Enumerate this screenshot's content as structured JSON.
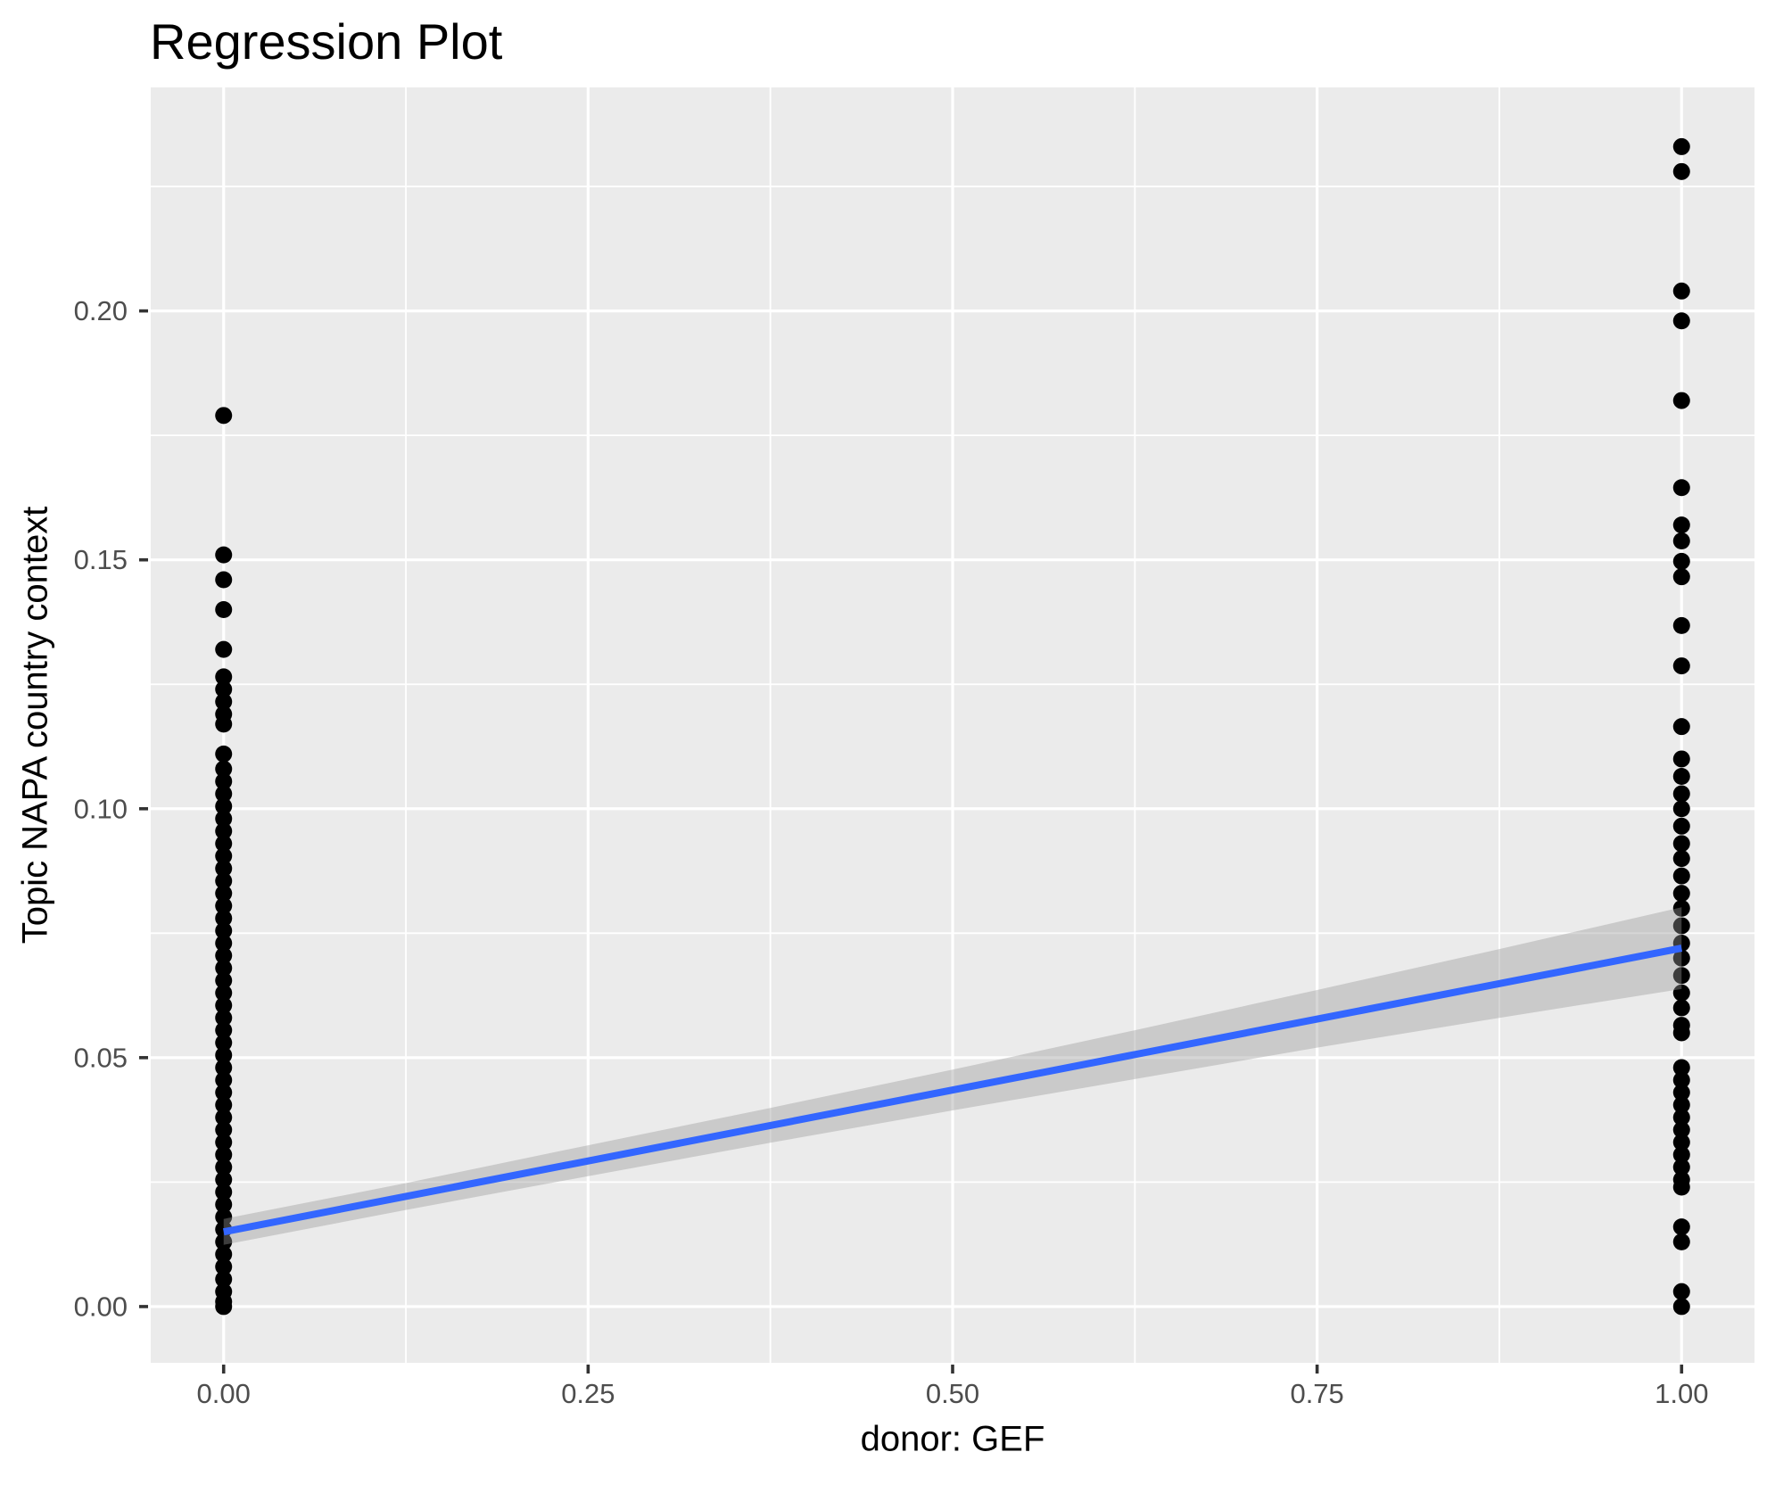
{
  "colors": {
    "panel_bg": "#EBEBEB",
    "grid": "#FFFFFF",
    "point": "#000000",
    "line": "#3366FF",
    "ribbon": "rgba(153,153,153,0.4)",
    "tick_label": "#4D4D4D",
    "tick_mark": "#333333",
    "title": "#000000"
  },
  "chart_data": {
    "type": "scatter",
    "title": "Regression Plot",
    "xlabel": "donor: GEF",
    "ylabel": "Topic NAPA country context",
    "xlim": [
      -0.05,
      1.05
    ],
    "ylim": [
      -0.0113,
      0.2449
    ],
    "grid": "major+minor, white on grey panel",
    "legend": "none",
    "x_ticks": [
      {
        "value": 0.0,
        "label": "0.00"
      },
      {
        "value": 0.25,
        "label": "0.25"
      },
      {
        "value": 0.5,
        "label": "0.50"
      },
      {
        "value": 0.75,
        "label": "0.75"
      },
      {
        "value": 1.0,
        "label": "1.00"
      }
    ],
    "y_ticks": [
      {
        "value": 0.0,
        "label": "0.00"
      },
      {
        "value": 0.05,
        "label": "0.05"
      },
      {
        "value": 0.1,
        "label": "0.10"
      },
      {
        "value": 0.15,
        "label": "0.15"
      },
      {
        "value": 0.2,
        "label": "0.20"
      }
    ],
    "x_minor": [
      0.125,
      0.375,
      0.625,
      0.875
    ],
    "y_minor": [
      0.025,
      0.075,
      0.125,
      0.175,
      0.225
    ],
    "series": [
      {
        "name": "donor GEF = 0",
        "x": 0,
        "y": [
          0.179,
          0.151,
          0.146,
          0.14,
          0.132,
          0.1265,
          0.124,
          0.1215,
          0.119,
          0.117,
          0.111,
          0.108,
          0.1055,
          0.103,
          0.1005,
          0.098,
          0.0955,
          0.093,
          0.0905,
          0.088,
          0.0855,
          0.083,
          0.0805,
          0.078,
          0.0755,
          0.073,
          0.0705,
          0.068,
          0.0655,
          0.063,
          0.0605,
          0.058,
          0.0555,
          0.053,
          0.0505,
          0.048,
          0.0455,
          0.043,
          0.0405,
          0.038,
          0.0355,
          0.033,
          0.0305,
          0.028,
          0.0255,
          0.023,
          0.0205,
          0.018,
          0.0155,
          0.013,
          0.0105,
          0.008,
          0.0055,
          0.003,
          0.001,
          0.0
        ]
      },
      {
        "name": "donor GEF = 1",
        "x": 1,
        "y": [
          0.233,
          0.228,
          0.204,
          0.198,
          0.182,
          0.1645,
          0.157,
          0.1538,
          0.1497,
          0.1466,
          0.1368,
          0.1287,
          0.1165,
          0.11,
          0.1065,
          0.103,
          0.1,
          0.0965,
          0.093,
          0.09,
          0.0865,
          0.083,
          0.08,
          0.0765,
          0.073,
          0.07,
          0.0665,
          0.063,
          0.06,
          0.0565,
          0.055,
          0.048,
          0.0455,
          0.043,
          0.0405,
          0.038,
          0.0355,
          0.033,
          0.0305,
          0.028,
          0.0255,
          0.024,
          0.016,
          0.013,
          0.003,
          0.0
        ]
      }
    ],
    "regression_line": {
      "x": [
        0,
        1
      ],
      "y": [
        0.015,
        0.072
      ]
    },
    "confidence_band": {
      "x": [
        0,
        0.125,
        0.25,
        0.375,
        0.5,
        0.625,
        0.75,
        0.875,
        1
      ],
      "lower": [
        0.0124,
        0.0194,
        0.0262,
        0.0329,
        0.0394,
        0.0457,
        0.052,
        0.058,
        0.0638
      ],
      "upper": [
        0.0176,
        0.0248,
        0.0324,
        0.0399,
        0.0476,
        0.0555,
        0.0636,
        0.0718,
        0.0802
      ]
    }
  }
}
